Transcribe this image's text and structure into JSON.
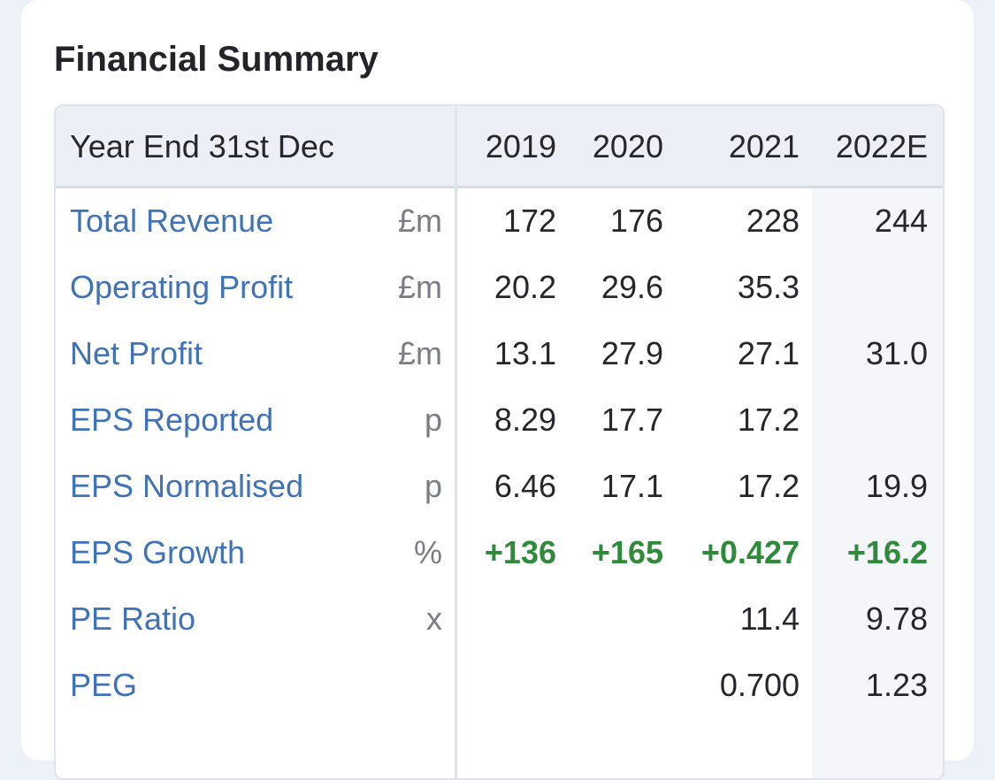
{
  "panel": {
    "title": "Financial Summary"
  },
  "table": {
    "header": {
      "label": "Year End 31st Dec",
      "years": [
        "2019",
        "2020",
        "2021",
        "2022E"
      ]
    },
    "rows": [
      {
        "label": "Total Revenue",
        "unit": "£m",
        "values": [
          "172",
          "176",
          "228",
          "244"
        ]
      },
      {
        "label": "Operating Profit",
        "unit": "£m",
        "values": [
          "20.2",
          "29.6",
          "35.3",
          ""
        ]
      },
      {
        "label": "Net Profit",
        "unit": "£m",
        "values": [
          "13.1",
          "27.9",
          "27.1",
          "31.0"
        ]
      },
      {
        "label": "EPS Reported",
        "unit": "p",
        "values": [
          "8.29",
          "17.7",
          "17.2",
          ""
        ]
      },
      {
        "label": "EPS Normalised",
        "unit": "p",
        "values": [
          "6.46",
          "17.1",
          "17.2",
          "19.9"
        ]
      },
      {
        "label": "EPS Growth",
        "unit": "%",
        "values": [
          "+136",
          "+165",
          "+0.427",
          "+16.2"
        ]
      },
      {
        "label": "PE Ratio",
        "unit": "x",
        "values": [
          "",
          "",
          "11.4",
          "9.78"
        ]
      },
      {
        "label": "PEG",
        "unit": "",
        "values": [
          "",
          "",
          "0.700",
          "1.23"
        ]
      }
    ]
  },
  "colors": {
    "link": "#3f72b7",
    "positive": "#2f8a3b",
    "header_bg": "#eceff5",
    "page_bg": "#ecf0f7"
  }
}
